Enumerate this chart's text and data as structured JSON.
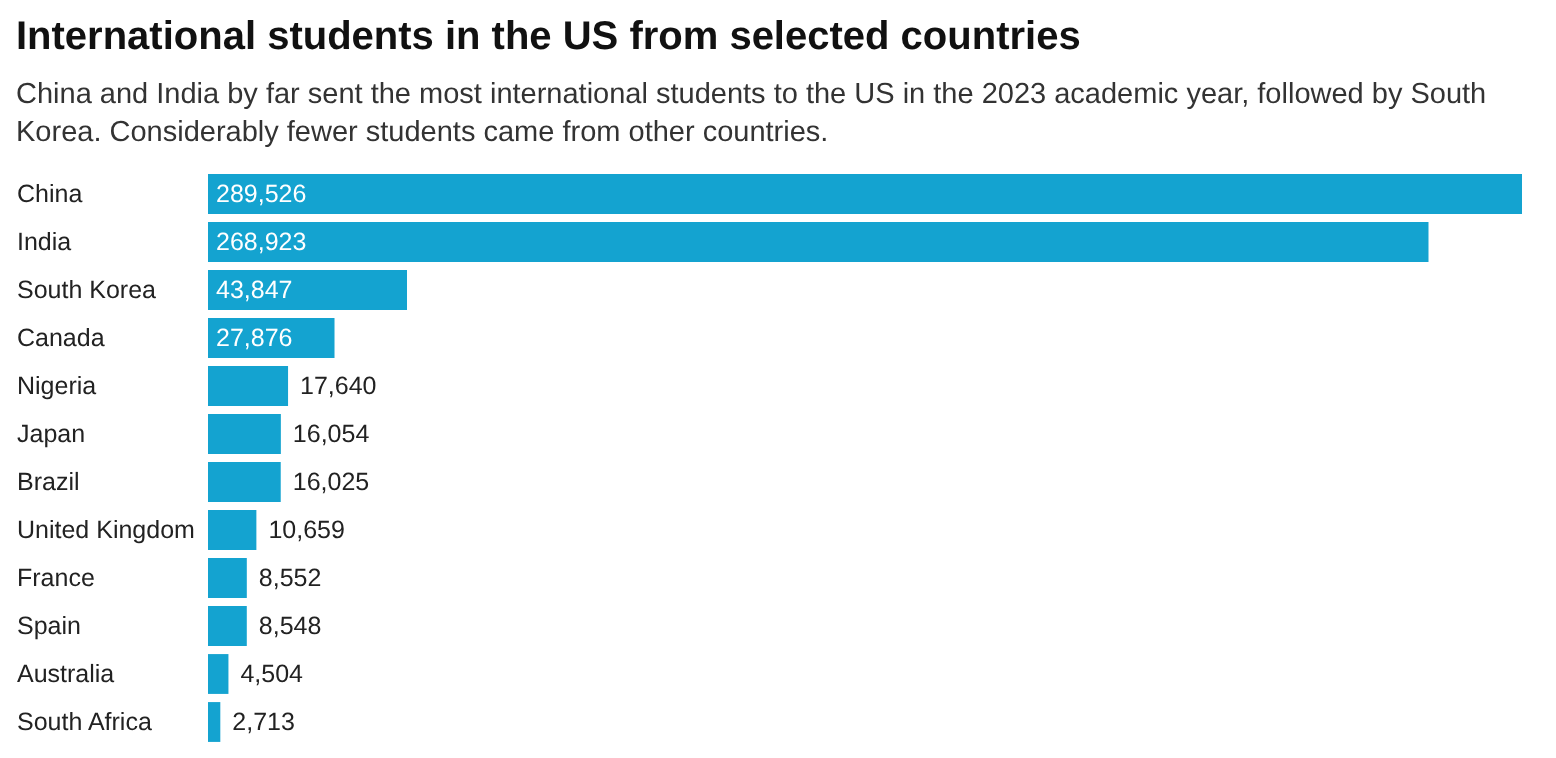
{
  "chart_data": {
    "type": "bar",
    "orientation": "horizontal",
    "title": "International students in the US from selected countries",
    "subtitle": "China and India by far sent the most international students to the US in the 2023 academic year, followed by South Korea. Considerably fewer students came from other countries.",
    "categories": [
      "China",
      "India",
      "South Korea",
      "Canada",
      "Nigeria",
      "Japan",
      "Brazil",
      "United Kingdom",
      "France",
      "Spain",
      "Australia",
      "South Africa"
    ],
    "values": [
      289526,
      268923,
      43847,
      27876,
      17640,
      16054,
      16025,
      10659,
      8552,
      8548,
      4504,
      2713
    ],
    "value_labels": [
      "289,526",
      "268,923",
      "43,847",
      "27,876",
      "17,640",
      "16,054",
      "16,025",
      "10,659",
      "8,552",
      "8,548",
      "4,504",
      "2,713"
    ],
    "color": "#14a3d0"
  }
}
